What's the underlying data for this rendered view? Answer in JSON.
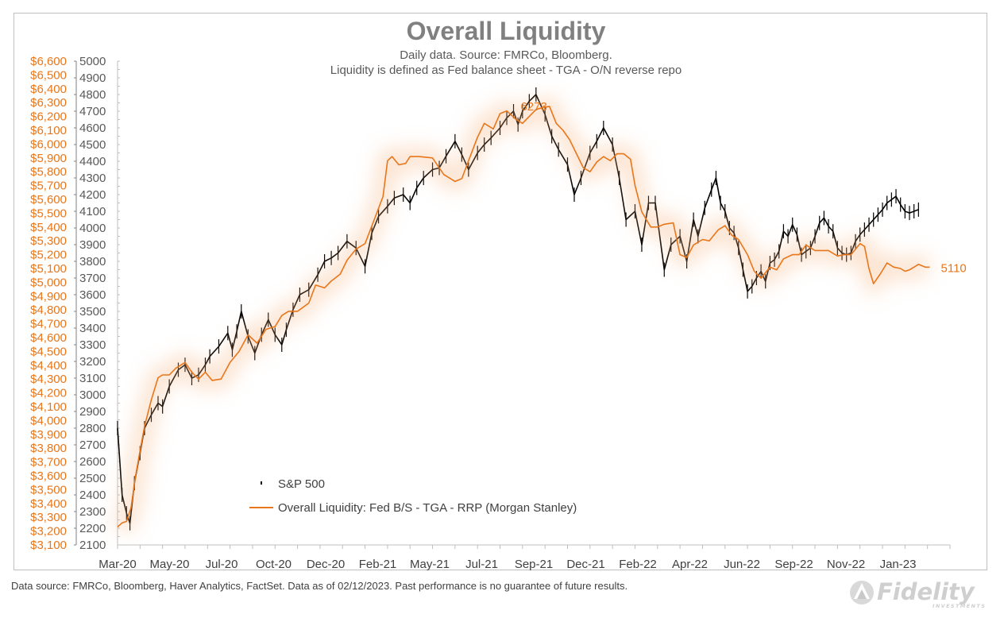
{
  "chart_data": {
    "type": "line",
    "title": "Overall Liquidity",
    "subtitle_lines": [
      "Daily data.  Source: FMRCo, Bloomberg.",
      "Liquidity is defined as Fed balance sheet - TGA - O/N reverse repo"
    ],
    "x_tick_labels": [
      "Mar-20",
      "May-20",
      "Jul-20",
      "Oct-20",
      "Dec-20",
      "Feb-21",
      "May-21",
      "Jul-21",
      "Sep-21",
      "Dec-21",
      "Feb-22",
      "Apr-22",
      "Jun-22",
      "Sep-22",
      "Nov-22",
      "Jan-23"
    ],
    "left_axis": {
      "min": 3100,
      "max": 6600,
      "step": 100,
      "prefix": "$",
      "color": "#e8761a",
      "tick_labels": [
        "$3,100",
        "$3,200",
        "$3,300",
        "$3,400",
        "$3,500",
        "$3,600",
        "$3,700",
        "$3,800",
        "$3,900",
        "$4,000",
        "$4,100",
        "$4,200",
        "$4,300",
        "$4,400",
        "$4,500",
        "$4,600",
        "$4,700",
        "$4,800",
        "$4,900",
        "$5,000",
        "$5,100",
        "$5,200",
        "$5,300",
        "$5,400",
        "$5,500",
        "$5,600",
        "$5,700",
        "$5,800",
        "$5,900",
        "$6,000",
        "$6,100",
        "$6,200",
        "$6,300",
        "$6,400",
        "$6,500",
        "$6,600"
      ]
    },
    "right_axis": {
      "min": 2100,
      "max": 5000,
      "step": 100,
      "color": "#595959",
      "tick_labels": [
        "2100",
        "2200",
        "2300",
        "2400",
        "2500",
        "2600",
        "2700",
        "2800",
        "2900",
        "3000",
        "3100",
        "3200",
        "3300",
        "3400",
        "3500",
        "3600",
        "3700",
        "3800",
        "3900",
        "4000",
        "4100",
        "4200",
        "4300",
        "4400",
        "4500",
        "4600",
        "4700",
        "4800",
        "4900",
        "5000"
      ]
    },
    "series": [
      {
        "name": "S&P 500",
        "axis": "right",
        "color": "#000000",
        "x": [
          0,
          0.2,
          0.4,
          0.55,
          0.75,
          1.0,
          1.2,
          1.5,
          1.8,
          2.0,
          2.3,
          2.7,
          3.0,
          3.3,
          3.6,
          3.9,
          4.1,
          4.5,
          4.9,
          5.1,
          5.3,
          5.5,
          5.8,
          6.1,
          6.4,
          6.7,
          7.0,
          7.3,
          7.5,
          7.8,
          8.1,
          8.5,
          8.9,
          9.2,
          9.5,
          9.8,
          10.2,
          10.6,
          11.0,
          11.3,
          11.6,
          12.0,
          12.3,
          12.7,
          13.0,
          13.3,
          13.6,
          14.0,
          14.3,
          14.6,
          15.0,
          15.3,
          15.6,
          16.0,
          16.3,
          16.6,
          17.0,
          17.3,
          17.6,
          17.8,
          18.0,
          18.3,
          18.6,
          19.0,
          19.3,
          19.6,
          20.0,
          20.3,
          20.6,
          21.0,
          21.3,
          21.6,
          22.0,
          22.3,
          22.6,
          23.0,
          23.3,
          23.6,
          23.9,
          24.3,
          24.6,
          25.0,
          25.3,
          25.6,
          25.8,
          26.1,
          26.4,
          26.6,
          26.8,
          27.0,
          27.2,
          27.4,
          27.6,
          27.8,
          28.0,
          28.2,
          28.4,
          28.6,
          28.8,
          29.0,
          29.2,
          29.4,
          29.6,
          29.8,
          30.0,
          30.2,
          30.4,
          30.6,
          30.8,
          31.0,
          31.2,
          31.4,
          31.6,
          31.8,
          32.0,
          32.2,
          32.4,
          32.6,
          32.8,
          33.0,
          33.2,
          33.4,
          33.6,
          33.8,
          34.0,
          34.2,
          34.4,
          34.6,
          34.8,
          35.0,
          35.2,
          35.4,
          35.6
        ],
        "values": [
          2800,
          2400,
          2290,
          2230,
          2470,
          2650,
          2800,
          2880,
          2950,
          2930,
          3050,
          3150,
          3180,
          3100,
          3120,
          3180,
          3230,
          3290,
          3370,
          3270,
          3380,
          3500,
          3350,
          3250,
          3360,
          3450,
          3360,
          3300,
          3390,
          3510,
          3600,
          3630,
          3720,
          3800,
          3820,
          3850,
          3920,
          3880,
          3770,
          3970,
          4070,
          4130,
          4180,
          4200,
          4150,
          4240,
          4300,
          4350,
          4360,
          4430,
          4520,
          4440,
          4350,
          4450,
          4500,
          4540,
          4600,
          4660,
          4700,
          4620,
          4700,
          4760,
          4800,
          4680,
          4550,
          4470,
          4380,
          4200,
          4300,
          4450,
          4520,
          4600,
          4500,
          4300,
          4050,
          4100,
          3900,
          4150,
          4150,
          3750,
          3900,
          3950,
          3800,
          4050,
          3950,
          4120,
          4230,
          4300,
          4150,
          4100,
          4000,
          3970,
          3880,
          3750,
          3620,
          3650,
          3700,
          3740,
          3680,
          3790,
          3810,
          3860,
          3980,
          3950,
          4020,
          3960,
          3840,
          3860,
          3880,
          3950,
          4030,
          4060,
          4010,
          3980,
          3880,
          3850,
          3840,
          3850,
          3920,
          3960,
          3990,
          4020,
          4050,
          4080,
          4110,
          4150,
          4170,
          4190,
          4140,
          4100,
          4090,
          4100,
          4110
        ]
      },
      {
        "name": "Overall Liquidity: Fed B/S - TGA - RRP (Morgan Stanley)",
        "axis": "left",
        "color": "#e8761a",
        "x": [
          0,
          0.2,
          0.4,
          0.6,
          0.8,
          1.0,
          1.2,
          1.5,
          1.8,
          2.0,
          2.3,
          2.6,
          3.0,
          3.3,
          3.6,
          3.9,
          4.2,
          4.6,
          5.0,
          5.4,
          5.8,
          6.2,
          6.6,
          7.0,
          7.3,
          7.6,
          8.0,
          8.5,
          8.8,
          9.2,
          9.5,
          9.9,
          10.2,
          10.6,
          11.0,
          11.4,
          11.8,
          12.0,
          12.2,
          12.5,
          12.8,
          13.0,
          13.4,
          14.0,
          14.5,
          15.0,
          15.3,
          15.6,
          16.0,
          16.3,
          16.7,
          17.0,
          17.3,
          17.7,
          18.0,
          18.3,
          18.6,
          18.9,
          19.2,
          19.5,
          19.8,
          20.1,
          20.4,
          20.7,
          21.0,
          21.3,
          21.6,
          21.9,
          22.2,
          22.5,
          22.8,
          23.0,
          23.3,
          23.7,
          24.0,
          24.3,
          24.7,
          25.0,
          25.3,
          25.6,
          26.0,
          26.3,
          26.7,
          27.0,
          27.3,
          27.6,
          28.0,
          28.3,
          28.6,
          29.0,
          29.3,
          29.6,
          30.0,
          30.3,
          30.6,
          31.0,
          31.3,
          31.6,
          32.0,
          32.3,
          32.6,
          33.0,
          33.2,
          33.4,
          33.6,
          33.9,
          34.2,
          34.5,
          34.8,
          35.0,
          35.2,
          35.4,
          35.6,
          35.9,
          36.1
        ],
        "values": [
          3230,
          3260,
          3270,
          3370,
          3600,
          3780,
          3960,
          4150,
          4310,
          4330,
          4330,
          4380,
          4420,
          4350,
          4300,
          4350,
          4290,
          4300,
          4420,
          4500,
          4620,
          4560,
          4660,
          4680,
          4760,
          4790,
          4790,
          4850,
          4980,
          4960,
          5010,
          5060,
          5160,
          5240,
          5280,
          5450,
          5620,
          5880,
          5910,
          5850,
          5860,
          5910,
          5910,
          5900,
          5780,
          5730,
          5750,
          5880,
          6050,
          6150,
          6110,
          6220,
          6240,
          6180,
          6150,
          6200,
          6250,
          6265,
          6273,
          6150,
          6100,
          6030,
          5930,
          5830,
          5800,
          5870,
          5910,
          5880,
          5930,
          5930,
          5890,
          5700,
          5510,
          5400,
          5400,
          5420,
          5430,
          5200,
          5180,
          5270,
          5310,
          5300,
          5380,
          5410,
          5340,
          5310,
          5200,
          5080,
          5030,
          5110,
          5090,
          5170,
          5200,
          5200,
          5270,
          5230,
          5230,
          5230,
          5190,
          5200,
          5200,
          5280,
          5260,
          5100,
          4990,
          5060,
          5140,
          5110,
          5100,
          5080,
          5090,
          5110,
          5130,
          5110,
          5110
        ]
      }
    ],
    "annotations": [
      {
        "text": "6273",
        "series": 1,
        "x": 19.2,
        "y": 6273,
        "side": "left"
      },
      {
        "text": "5110",
        "series": 1,
        "x": 36.1,
        "y": 5110,
        "side": "right"
      }
    ],
    "x_range": [
      0,
      37
    ],
    "legend_position": "bottom-left",
    "grid": false
  },
  "footer": {
    "note": "Data source: FMRCo, Bloomberg, Haver Analytics, FactSet. Data as of 02/12/2023. Past performance is no guarantee of future results.",
    "logo_text": "Fidelity",
    "logo_subtext": "INVESTMENTS"
  }
}
